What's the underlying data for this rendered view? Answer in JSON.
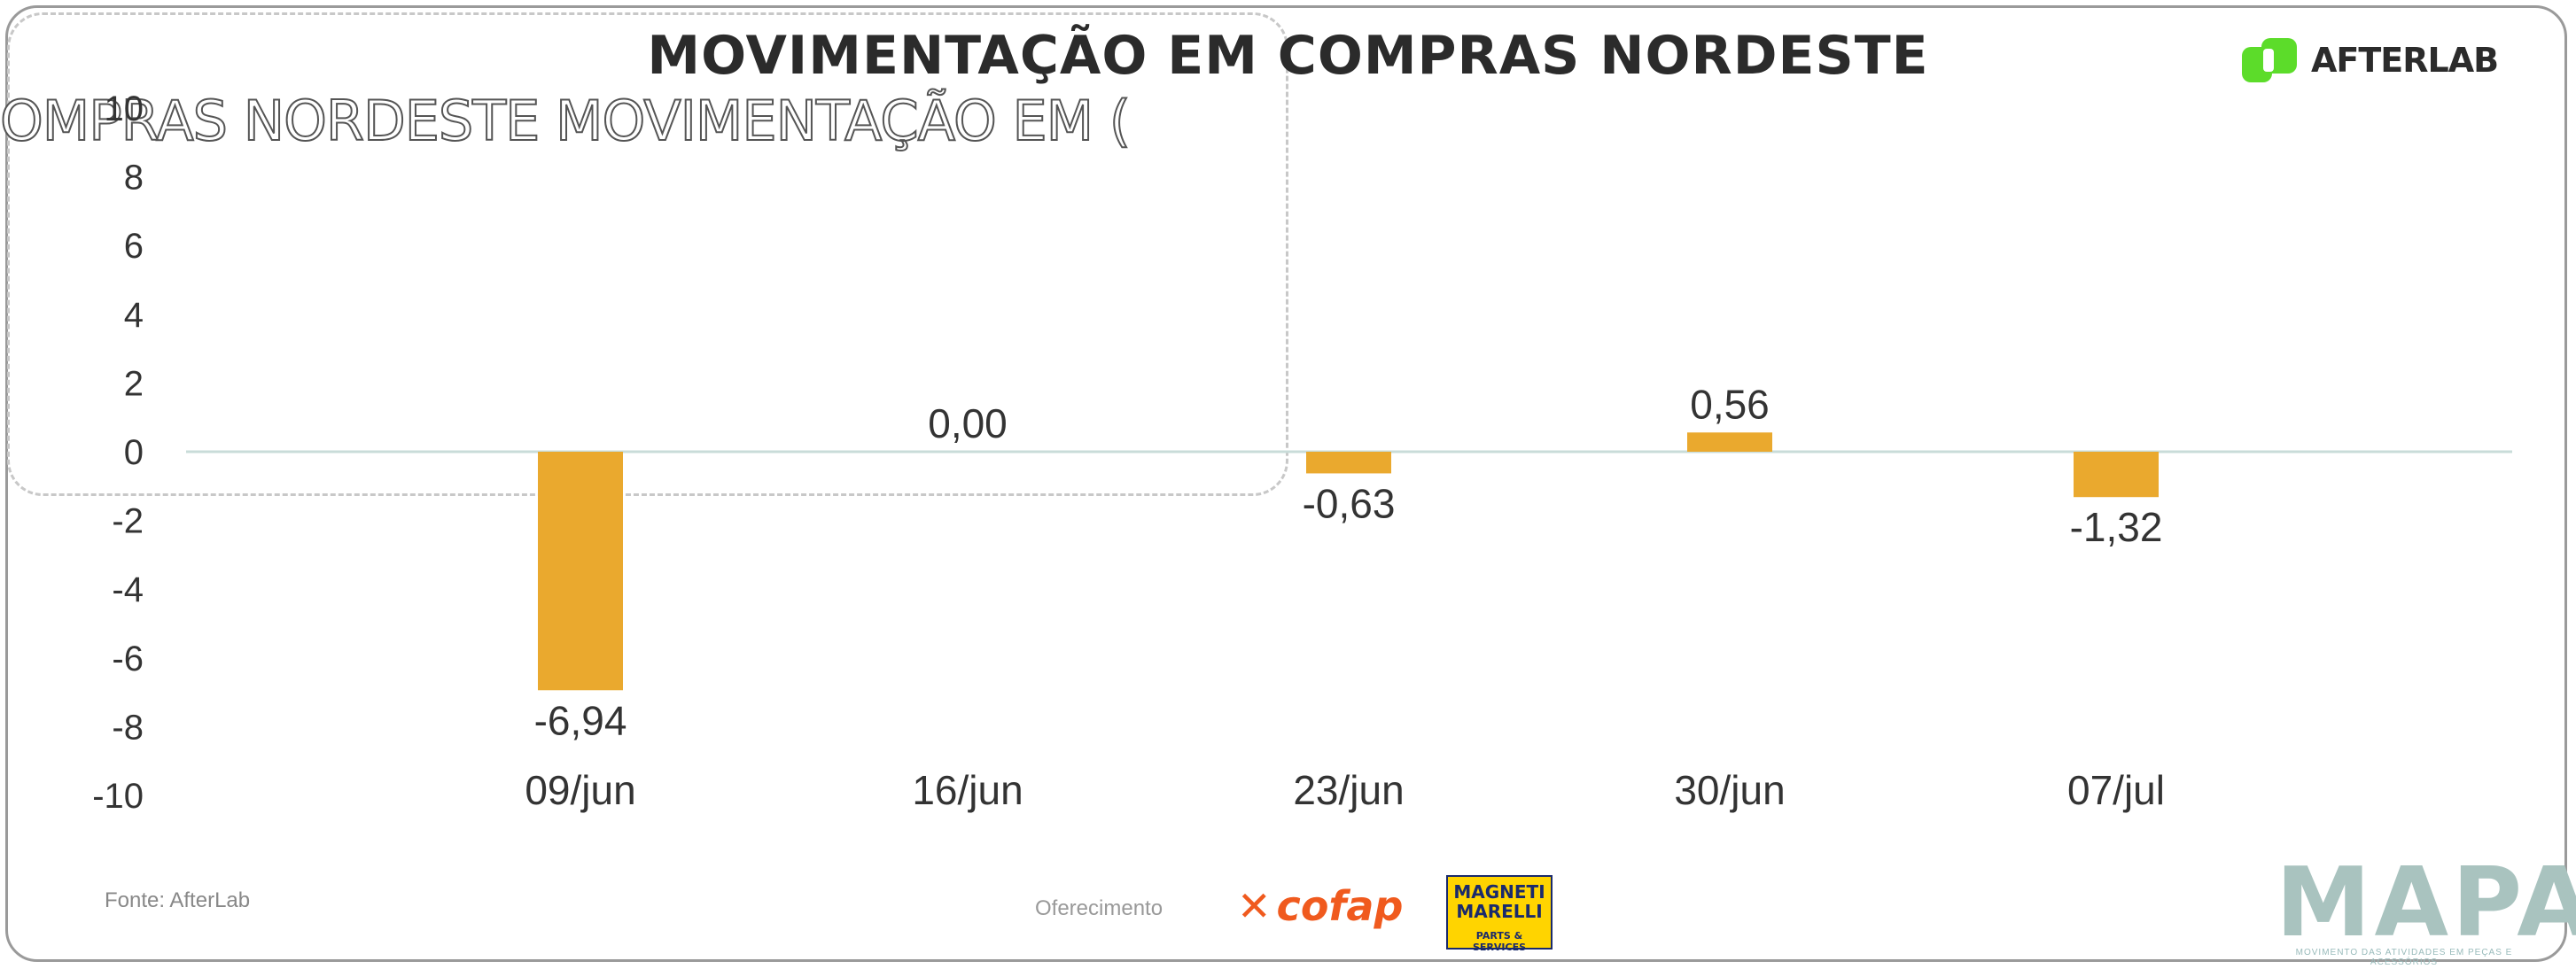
{
  "title": "MOVIMENTAÇÃO EM COMPRAS NORDESTE",
  "ghost_text": "OMPRAS NORDESTE  MOVIMENTAÇÃO EM (",
  "logo": {
    "brand": "AFTERLAB",
    "color": "#5cdc2a"
  },
  "footer": {
    "source": "Fonte: AfterLab",
    "sponsor": "Oferecimento",
    "cofap": "cofap",
    "magneti_top": "MAGNETI MARELLI",
    "magneti_bottom": "PARTS & SERVICES",
    "mapa": "MAPA",
    "mapa_sub": "MOVIMENTO DAS ATIVIDADES EM PEÇAS E ACESSÓRIOS"
  },
  "chart_data": {
    "type": "bar",
    "title": "MOVIMENTAÇÃO EM COMPRAS NORDESTE",
    "categories": [
      "09/jun",
      "16/jun",
      "23/jun",
      "30/jun",
      "07/jul"
    ],
    "values": [
      -6.94,
      0.0,
      -0.63,
      0.56,
      -1.32
    ],
    "value_labels": [
      "-6,94",
      "0,00",
      "-0,63",
      "0,56",
      "-1,32"
    ],
    "yticks": [
      "10",
      "8",
      "6",
      "4",
      "2",
      "0",
      "-2",
      "-4",
      "-6",
      "-8",
      "-10"
    ],
    "ylim": [
      -10,
      10
    ],
    "bar_color": "#eaa92e",
    "zero_line_color": "#c9dcd9",
    "grid": false,
    "legend": "none"
  }
}
